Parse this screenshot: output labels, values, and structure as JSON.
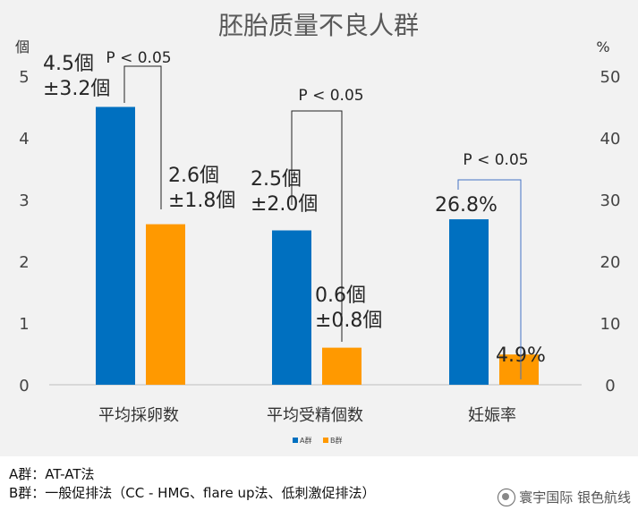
{
  "chart_data": {
    "type": "bar",
    "title": "胚胎质量不良人群",
    "categories": [
      "平均採卵数",
      "平均受精個数",
      "妊娠率"
    ],
    "series": [
      {
        "name": "A群",
        "color": "#0070c0",
        "values": [
          4.5,
          2.5,
          26.8
        ]
      },
      {
        "name": "B群",
        "color": "#ff9900",
        "values": [
          2.6,
          0.6,
          4.9
        ]
      }
    ],
    "value_axis_note": "前两组按左轴（個），妊娠率按右轴（%）",
    "y_left": {
      "label": "個",
      "ticks": [
        "0",
        "1",
        "2",
        "3",
        "4",
        "5"
      ],
      "range": [
        0,
        5
      ]
    },
    "y_right": {
      "label": "%",
      "ticks": [
        "0",
        "10",
        "20",
        "30",
        "40",
        "50"
      ],
      "range": [
        0,
        50
      ]
    },
    "data_labels": [
      [
        "4.5個",
        "±3.2個"
      ],
      [
        "2.6個",
        "±1.8個"
      ],
      [
        "2.5個",
        "±2.0個"
      ],
      [
        "0.6個",
        "±0.8個"
      ],
      [
        "26.8%"
      ],
      [
        "4.9%"
      ]
    ],
    "significance": [
      "P < 0.05",
      "P < 0.05",
      "P < 0.05"
    ],
    "legend": {
      "position": "bottom",
      "items": [
        "A群",
        "B群"
      ]
    },
    "grid": false
  },
  "notes": {
    "line1": "A群：AT-AT法",
    "line2": "B群：一般促排法（CC - HMG、flare up法、低刺激促排法）"
  },
  "watermark": "寰宇国际 银色航线"
}
